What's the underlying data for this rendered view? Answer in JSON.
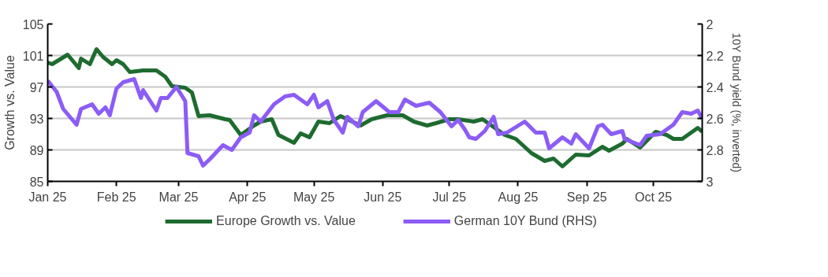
{
  "chart_data": {
    "type": "line",
    "ylabel": "Growth vs. Value",
    "y2label": "10Y Bund yield (%, inverted)",
    "xlim": [
      "2025-01-01",
      "2025-10-23"
    ],
    "xticks": [
      {
        "value": "2025-01-01",
        "label": "Jan 25"
      },
      {
        "value": "2025-02-01",
        "label": "Feb 25"
      },
      {
        "value": "2025-03-01",
        "label": "Mar 25"
      },
      {
        "value": "2025-04-01",
        "label": "Apr 25"
      },
      {
        "value": "2025-05-01",
        "label": "May 25"
      },
      {
        "value": "2025-06-01",
        "label": "Jun 25"
      },
      {
        "value": "2025-07-01",
        "label": "Jul 25"
      },
      {
        "value": "2025-08-01",
        "label": "Aug 25"
      },
      {
        "value": "2025-09-01",
        "label": "Sep 25"
      },
      {
        "value": "2025-10-01",
        "label": "Oct 25"
      }
    ],
    "ylim": [
      85,
      105
    ],
    "yticks": [
      85,
      89,
      93,
      97,
      101,
      105
    ],
    "y2lim": [
      3,
      2
    ],
    "y2ticks": [
      2,
      2.2,
      2.4,
      2.6,
      2.8,
      3
    ],
    "grid": "y",
    "legend": "bottom",
    "line_style": "solid",
    "series": [
      {
        "name": "Europe Growth vs. Value",
        "color": "#1e6b30",
        "x": [
          "2025-01-01",
          "2025-01-03",
          "2025-01-10",
          "2025-01-15",
          "2025-01-16",
          "2025-01-20",
          "2025-01-23",
          "2025-01-26",
          "2025-01-30",
          "2025-02-01",
          "2025-02-04",
          "2025-02-07",
          "2025-02-13",
          "2025-02-19",
          "2025-02-23",
          "2025-02-26",
          "2025-03-04",
          "2025-03-07",
          "2025-03-10",
          "2025-03-15",
          "2025-03-22",
          "2025-03-24",
          "2025-03-29",
          "2025-04-04",
          "2025-04-07",
          "2025-04-12",
          "2025-04-15",
          "2025-04-22",
          "2025-04-25",
          "2025-04-29",
          "2025-05-03",
          "2025-05-08",
          "2025-05-13",
          "2025-05-16",
          "2025-05-22",
          "2025-05-27",
          "2025-06-03",
          "2025-06-10",
          "2025-06-15",
          "2025-06-21",
          "2025-06-25",
          "2025-07-01",
          "2025-07-05",
          "2025-07-12",
          "2025-07-16",
          "2025-07-20",
          "2025-07-26",
          "2025-07-31",
          "2025-08-07",
          "2025-08-13",
          "2025-08-17",
          "2025-08-21",
          "2025-08-27",
          "2025-09-02",
          "2025-09-08",
          "2025-09-11",
          "2025-09-17",
          "2025-09-19",
          "2025-09-25",
          "2025-10-02",
          "2025-10-07",
          "2025-10-10",
          "2025-10-14",
          "2025-10-21",
          "2025-10-23"
        ],
        "values": [
          100.1,
          99.9,
          101.1,
          99.4,
          100.6,
          99.9,
          101.8,
          100.8,
          99.9,
          100.4,
          99.9,
          98.9,
          99.1,
          99.1,
          98.3,
          97.1,
          96.9,
          96.3,
          93.3,
          93.4,
          92.9,
          92.8,
          90.9,
          92.1,
          92.6,
          92.9,
          90.9,
          89.9,
          91.1,
          90.6,
          92.6,
          92.4,
          93.3,
          92.9,
          92.1,
          92.9,
          93.4,
          93.4,
          92.6,
          92.1,
          92.4,
          92.9,
          92.9,
          92.6,
          92.9,
          92.1,
          90.9,
          90.4,
          88.6,
          87.6,
          87.9,
          86.9,
          88.4,
          88.3,
          89.4,
          88.9,
          89.8,
          90.4,
          89.3,
          91.3,
          90.9,
          90.4,
          90.4,
          91.8,
          91.3
        ]
      },
      {
        "name": "German 10Y Bund (RHS)",
        "color": "#8c5cf6",
        "axis": "y2",
        "x": [
          "2025-01-01",
          "2025-01-05",
          "2025-01-08",
          "2025-01-14",
          "2025-01-16",
          "2025-01-21",
          "2025-01-24",
          "2025-01-27",
          "2025-01-29",
          "2025-02-01",
          "2025-02-04",
          "2025-02-09",
          "2025-02-12",
          "2025-02-13",
          "2025-02-19",
          "2025-02-21",
          "2025-02-24",
          "2025-02-28",
          "2025-03-04",
          "2025-03-05",
          "2025-03-10",
          "2025-03-12",
          "2025-03-15",
          "2025-03-21",
          "2025-03-25",
          "2025-03-29",
          "2025-04-02",
          "2025-04-04",
          "2025-04-07",
          "2025-04-13",
          "2025-04-18",
          "2025-04-22",
          "2025-04-28",
          "2025-05-01",
          "2025-05-03",
          "2025-05-07",
          "2025-05-10",
          "2025-05-14",
          "2025-05-16",
          "2025-05-21",
          "2025-05-23",
          "2025-05-29",
          "2025-06-04",
          "2025-06-08",
          "2025-06-11",
          "2025-06-16",
          "2025-06-22",
          "2025-06-27",
          "2025-07-02",
          "2025-07-05",
          "2025-07-08",
          "2025-07-10",
          "2025-07-13",
          "2025-07-17",
          "2025-07-21",
          "2025-07-23",
          "2025-07-27",
          "2025-08-04",
          "2025-08-09",
          "2025-08-13",
          "2025-08-15",
          "2025-08-21",
          "2025-08-25",
          "2025-08-27",
          "2025-09-02",
          "2025-09-06",
          "2025-09-08",
          "2025-09-12",
          "2025-09-17",
          "2025-09-18",
          "2025-09-25",
          "2025-09-28",
          "2025-10-04",
          "2025-10-10",
          "2025-10-14",
          "2025-10-18",
          "2025-10-21",
          "2025-10-23"
        ],
        "values": [
          2.36,
          2.43,
          2.54,
          2.64,
          2.54,
          2.51,
          2.57,
          2.53,
          2.58,
          2.41,
          2.37,
          2.35,
          2.47,
          2.42,
          2.55,
          2.47,
          2.47,
          2.4,
          2.49,
          2.82,
          2.84,
          2.9,
          2.86,
          2.77,
          2.8,
          2.72,
          2.69,
          2.58,
          2.62,
          2.51,
          2.46,
          2.45,
          2.51,
          2.45,
          2.53,
          2.49,
          2.61,
          2.69,
          2.59,
          2.65,
          2.56,
          2.49,
          2.56,
          2.56,
          2.48,
          2.52,
          2.5,
          2.56,
          2.65,
          2.61,
          2.67,
          2.72,
          2.73,
          2.68,
          2.59,
          2.7,
          2.69,
          2.62,
          2.69,
          2.69,
          2.79,
          2.72,
          2.76,
          2.7,
          2.79,
          2.65,
          2.64,
          2.7,
          2.68,
          2.73,
          2.77,
          2.71,
          2.7,
          2.64,
          2.56,
          2.57,
          2.55,
          2.6
        ]
      }
    ]
  }
}
